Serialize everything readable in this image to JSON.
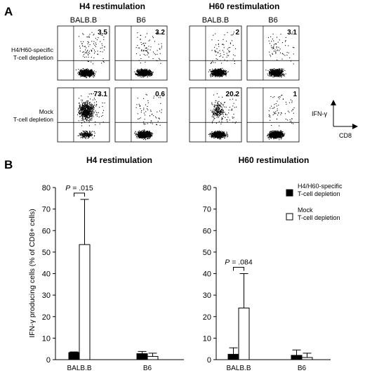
{
  "panel_a": {
    "letter": "A",
    "groups": [
      {
        "title": "H4 restimulation",
        "strains": [
          "BALB.B",
          "B6"
        ]
      },
      {
        "title": "H60 restimulation",
        "strains": [
          "BALB.B",
          "B6"
        ]
      }
    ],
    "rows": [
      {
        "label_lines": [
          "H4/H60-specific",
          "T-cell depletion"
        ],
        "values": [
          "3.5",
          "3.2",
          "2",
          "3.1"
        ],
        "density": [
          0.035,
          0.032,
          0.02,
          0.031
        ]
      },
      {
        "label_lines": [
          "Mock",
          "T-cell depletion"
        ],
        "values": [
          "73.1",
          "0.6",
          "20.2",
          "1"
        ],
        "density": [
          0.731,
          0.006,
          0.202,
          0.01
        ]
      }
    ],
    "axis_y": "IFN-γ",
    "axis_x": "CD8"
  },
  "panel_b": {
    "letter": "B",
    "legend": [
      {
        "name_lines": [
          "H4/H60-specific",
          "T-cell depletion"
        ],
        "color": "#000000"
      },
      {
        "name_lines": [
          "Mock",
          "T-cell depletion"
        ],
        "color": "#ffffff"
      }
    ]
  },
  "chart_data": [
    {
      "type": "bar",
      "title": "H4 restimulation",
      "ylabel": "IFN-γ producing cells (% of CD8+ cells)",
      "ylim": [
        0,
        80
      ],
      "yticks": [
        "0",
        "10",
        "20",
        "30",
        "40",
        "50",
        "60",
        "70",
        "80"
      ],
      "categories": [
        "BALB.B",
        "B6"
      ],
      "series": [
        {
          "name": "H4/H60-specific T-cell depletion",
          "values": [
            3.3,
            2.8
          ],
          "errors": [
            0.3,
            1.0
          ]
        },
        {
          "name": "Mock T-cell depletion",
          "values": [
            53.5,
            1.5
          ],
          "errors": [
            21.0,
            1.5
          ]
        }
      ],
      "annotation": {
        "text_italic": "P",
        "text_rest": " = .015",
        "category": "BALB.B"
      }
    },
    {
      "type": "bar",
      "title": "H60 restimulation",
      "ylabel": "",
      "ylim": [
        0,
        80
      ],
      "yticks": [
        "0",
        "10",
        "20",
        "30",
        "40",
        "50",
        "60",
        "70",
        "80"
      ],
      "categories": [
        "BALB.B",
        "B6"
      ],
      "series": [
        {
          "name": "H4/H60-specific T-cell depletion",
          "values": [
            2.5,
            2.0
          ],
          "errors": [
            3.0,
            2.5
          ]
        },
        {
          "name": "Mock T-cell depletion",
          "values": [
            24.0,
            1.0
          ],
          "errors": [
            16.0,
            2.0
          ]
        }
      ],
      "annotation": {
        "text_italic": "P",
        "text_rest": " = .084",
        "category": "BALB.B"
      }
    }
  ]
}
